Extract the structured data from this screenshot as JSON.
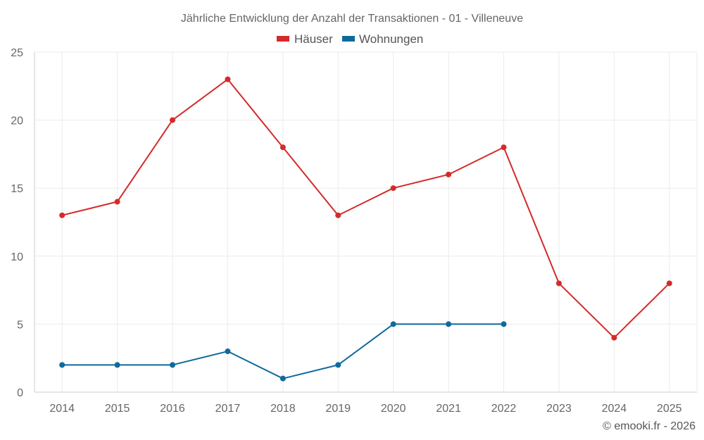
{
  "chart_data": {
    "type": "line",
    "title": "Jährliche Entwicklung der Anzahl der Transaktionen - 01 - Villeneuve",
    "xlabel": "",
    "ylabel": "",
    "categories": [
      "2014",
      "2015",
      "2016",
      "2017",
      "2018",
      "2019",
      "2020",
      "2021",
      "2022",
      "2023",
      "2024",
      "2025"
    ],
    "ylim": [
      0,
      25
    ],
    "yticks": [
      0,
      5,
      10,
      15,
      20,
      25
    ],
    "grid": true,
    "legend_position": "top-center",
    "series": [
      {
        "name": "Häuser",
        "color": "#d42a2a",
        "values": [
          13,
          14,
          20,
          23,
          18,
          13,
          15,
          16,
          18,
          8,
          4,
          8
        ]
      },
      {
        "name": "Wohnungen",
        "color": "#0f6a9b",
        "values": [
          2,
          2,
          2,
          3,
          1,
          2,
          5,
          5,
          5,
          null,
          null,
          null
        ]
      }
    ]
  },
  "credit": "© emooki.fr - 2026"
}
